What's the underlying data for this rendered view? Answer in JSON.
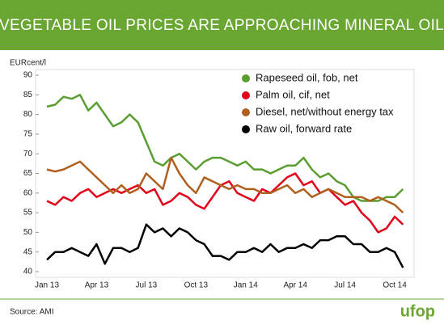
{
  "chart_data": {
    "type": "line",
    "title": "VEGETABLE OIL PRICES ARE APPROACHING MINERAL OIL",
    "y_label": "EURcent/l",
    "source": "Source: AMI",
    "logo": "ufop",
    "categories": [
      "Jan 13",
      null,
      null,
      null,
      null,
      null,
      "Apr 13",
      null,
      null,
      null,
      null,
      null,
      "Jul 13",
      null,
      null,
      null,
      null,
      null,
      "Oct 13",
      null,
      null,
      null,
      null,
      null,
      "Jan 14",
      null,
      null,
      null,
      null,
      null,
      "Apr 14",
      null,
      null,
      null,
      null,
      null,
      "Jul 14",
      null,
      null,
      null,
      null,
      null,
      "Oct 14",
      null
    ],
    "ylim": [
      40,
      90
    ],
    "yticks": [
      40,
      45,
      50,
      55,
      60,
      65,
      70,
      75,
      80,
      85,
      90
    ],
    "legend": "top-right",
    "series": [
      {
        "name": "Rapeseed oil, fob, net",
        "color": "#5a9e32",
        "values": [
          82,
          82.5,
          84.5,
          84,
          85,
          81,
          83,
          80,
          77,
          78,
          80,
          78,
          73,
          68,
          67,
          69,
          70,
          68,
          66,
          68,
          69,
          69,
          68,
          67,
          68,
          66,
          66,
          65,
          66,
          67,
          67,
          69,
          66,
          64,
          65,
          63,
          62,
          59,
          58,
          58,
          58,
          59,
          59,
          61
        ]
      },
      {
        "name": "Palm oil, cif, net",
        "color": "#e2001a",
        "values": [
          58,
          57,
          59,
          58,
          60,
          61,
          59,
          60,
          61,
          60,
          61,
          62,
          60,
          61,
          57,
          58,
          60,
          59,
          57,
          56,
          59,
          62,
          63,
          60,
          59,
          58,
          61,
          60,
          62,
          64,
          65,
          62,
          63,
          60,
          61,
          59,
          57,
          58,
          55,
          53,
          50,
          51,
          54,
          52
        ]
      },
      {
        "name": "Diesel, net/without energy tax",
        "color": "#b0601e",
        "values": [
          66,
          65.5,
          66,
          67,
          68,
          66,
          64,
          62,
          60,
          62,
          60,
          61,
          65,
          63,
          61,
          69,
          65,
          62,
          60,
          64,
          63,
          62,
          61,
          62,
          61,
          61,
          60,
          60,
          61,
          62,
          60,
          61,
          59,
          60,
          61,
          60,
          59,
          59,
          59,
          58,
          59,
          58,
          57,
          55
        ]
      },
      {
        "name": "Raw oil, forward rate",
        "color": "#000000",
        "values": [
          43,
          45,
          45,
          46,
          45,
          44,
          47,
          42,
          46,
          46,
          45,
          46,
          52,
          50,
          51,
          49,
          51,
          50,
          48,
          47,
          44,
          44,
          43,
          45,
          45,
          46,
          45,
          47,
          45,
          46,
          46,
          47,
          46,
          48,
          48,
          49,
          49,
          47,
          47,
          45,
          45,
          46,
          45,
          41
        ]
      }
    ]
  }
}
